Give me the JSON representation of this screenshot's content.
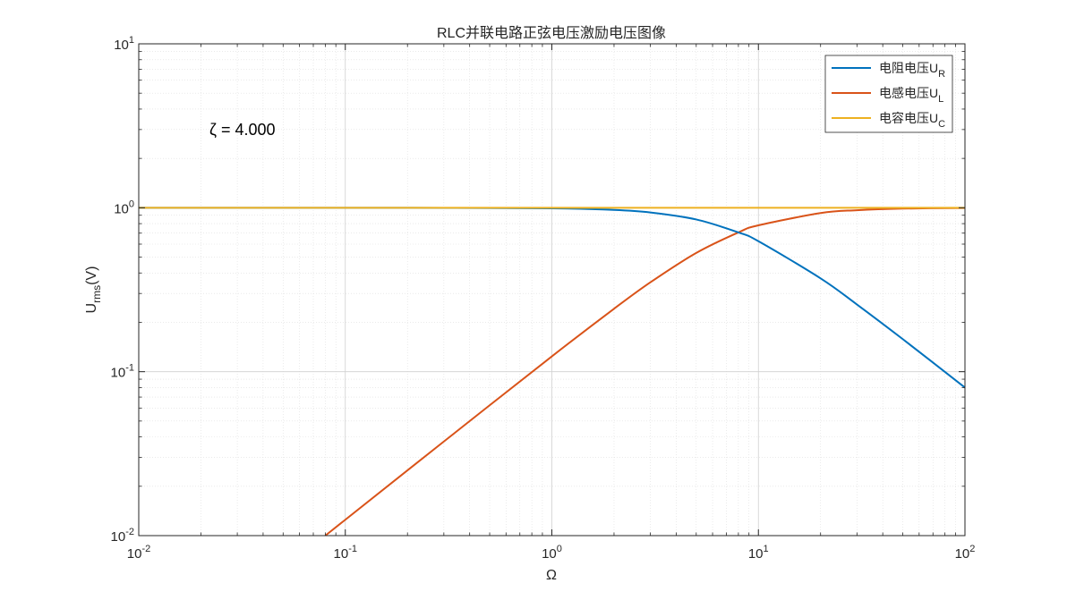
{
  "chart_data": {
    "type": "line",
    "title": "RLC并联电路正弦电压激励电压图像",
    "xlabel": "Ω",
    "ylabel": {
      "main": "U",
      "sub": "rms",
      "suffix": "(V)"
    },
    "xscale": "log",
    "yscale": "log",
    "xlim": [
      0.01,
      100
    ],
    "ylim": [
      0.01,
      10
    ],
    "grid": true,
    "minor_grid": true,
    "x_ticks": [
      {
        "base": "10",
        "exp": "-2"
      },
      {
        "base": "10",
        "exp": "-1"
      },
      {
        "base": "10",
        "exp": "0"
      },
      {
        "base": "10",
        "exp": "1"
      },
      {
        "base": "10",
        "exp": "2"
      }
    ],
    "y_ticks": [
      {
        "base": "10",
        "exp": "-2"
      },
      {
        "base": "10",
        "exp": "-1"
      },
      {
        "base": "10",
        "exp": "0"
      },
      {
        "base": "10",
        "exp": "1"
      }
    ],
    "annotation": {
      "text": "ζ = 4.000",
      "x": 0.022,
      "y": 3.0
    },
    "legend_position": "top-right",
    "series": [
      {
        "name": "电阻电压U",
        "sub": "R",
        "color": "#0072BD",
        "x": [
          0.01,
          0.1,
          0.3,
          1,
          2,
          3,
          5,
          8,
          10,
          20,
          30,
          50,
          100
        ],
        "y": [
          1.0,
          1.0,
          0.998,
          0.992,
          0.97,
          0.936,
          0.848,
          0.707,
          0.625,
          0.371,
          0.257,
          0.158,
          0.08
        ]
      },
      {
        "name": "电感电压U",
        "sub": "L",
        "color": "#D95319",
        "x": [
          0.08,
          0.1,
          0.3,
          1,
          2,
          3,
          5,
          8,
          10,
          20,
          30,
          50,
          100
        ],
        "y": [
          0.01,
          0.0125,
          0.0375,
          0.124,
          0.242,
          0.351,
          0.53,
          0.707,
          0.781,
          0.928,
          0.966,
          0.988,
          0.997
        ]
      },
      {
        "name": "电容电压U",
        "sub": "C",
        "color": "#EDB120",
        "x": [
          0.01,
          100
        ],
        "y": [
          1.0,
          1.0
        ]
      }
    ]
  }
}
